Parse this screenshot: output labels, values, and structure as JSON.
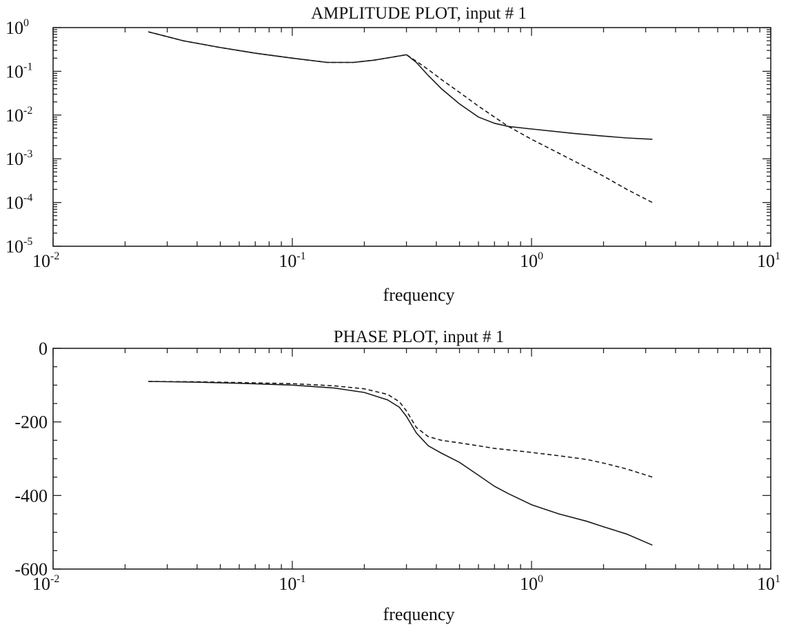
{
  "chart_data": [
    {
      "type": "line",
      "title": "AMPLITUDE PLOT, input # 1",
      "xlabel": "frequency",
      "ylabel": "",
      "xscale": "log",
      "yscale": "log",
      "xlim": [
        0.01,
        10
      ],
      "ylim": [
        1e-05,
        1
      ],
      "grid": false,
      "x_ticks": [
        {
          "base": "10",
          "exp": "-2"
        },
        {
          "base": "10",
          "exp": "-1"
        },
        {
          "base": "10",
          "exp": "0"
        },
        {
          "base": "10",
          "exp": "1"
        }
      ],
      "y_ticks": [
        {
          "base": "10",
          "exp": "0"
        },
        {
          "base": "10",
          "exp": "-1"
        },
        {
          "base": "10",
          "exp": "-2"
        },
        {
          "base": "10",
          "exp": "-3"
        },
        {
          "base": "10",
          "exp": "-4"
        },
        {
          "base": "10",
          "exp": "-5"
        }
      ],
      "series": [
        {
          "style": "solid",
          "x": [
            0.025,
            0.035,
            0.05,
            0.07,
            0.1,
            0.14,
            0.18,
            0.22,
            0.26,
            0.3,
            0.33,
            0.37,
            0.42,
            0.5,
            0.6,
            0.7,
            0.8,
            1.0,
            1.5,
            2.0,
            2.5,
            3.2
          ],
          "y": [
            0.8,
            0.5,
            0.35,
            0.26,
            0.2,
            0.16,
            0.16,
            0.18,
            0.21,
            0.24,
            0.16,
            0.08,
            0.04,
            0.018,
            0.009,
            0.0065,
            0.0055,
            0.0048,
            0.0038,
            0.0033,
            0.003,
            0.0028
          ]
        },
        {
          "style": "dashed",
          "x": [
            0.025,
            0.035,
            0.05,
            0.07,
            0.1,
            0.14,
            0.18,
            0.22,
            0.26,
            0.3,
            0.33,
            0.37,
            0.42,
            0.5,
            0.6,
            0.7,
            0.8,
            1.0,
            1.5,
            2.0,
            2.5,
            3.2
          ],
          "y": [
            0.8,
            0.5,
            0.35,
            0.26,
            0.2,
            0.16,
            0.16,
            0.18,
            0.21,
            0.24,
            0.17,
            0.11,
            0.065,
            0.033,
            0.016,
            0.009,
            0.0055,
            0.0028,
            0.0009,
            0.0004,
            0.0002,
            0.0001
          ]
        }
      ]
    },
    {
      "type": "line",
      "title": "PHASE PLOT, input # 1",
      "xlabel": "frequency",
      "ylabel": "",
      "xscale": "log",
      "yscale": "linear",
      "xlim": [
        0.01,
        10
      ],
      "ylim": [
        -600,
        0
      ],
      "grid": false,
      "x_ticks": [
        {
          "base": "10",
          "exp": "-2"
        },
        {
          "base": "10",
          "exp": "-1"
        },
        {
          "base": "10",
          "exp": "0"
        },
        {
          "base": "10",
          "exp": "1"
        }
      ],
      "y_ticks": [
        "0",
        "-200",
        "-400",
        "-600"
      ],
      "y_tick_values": [
        0,
        -200,
        -400,
        -600
      ],
      "series": [
        {
          "style": "solid",
          "x": [
            0.025,
            0.04,
            0.06,
            0.1,
            0.15,
            0.2,
            0.25,
            0.28,
            0.3,
            0.33,
            0.37,
            0.42,
            0.5,
            0.6,
            0.7,
            0.8,
            1.0,
            1.3,
            1.7,
            2.0,
            2.5,
            3.2
          ],
          "y": [
            -90,
            -92,
            -95,
            -100,
            -108,
            -120,
            -140,
            -160,
            -185,
            -230,
            -265,
            -285,
            -310,
            -345,
            -375,
            -395,
            -425,
            -450,
            -470,
            -485,
            -505,
            -535
          ]
        },
        {
          "style": "dashed",
          "x": [
            0.025,
            0.04,
            0.06,
            0.1,
            0.15,
            0.2,
            0.25,
            0.28,
            0.3,
            0.33,
            0.37,
            0.42,
            0.5,
            0.6,
            0.7,
            0.8,
            1.0,
            1.3,
            1.7,
            2.0,
            2.5,
            3.2
          ],
          "y": [
            -90,
            -91,
            -93,
            -96,
            -102,
            -110,
            -125,
            -145,
            -170,
            -215,
            -240,
            -250,
            -257,
            -265,
            -272,
            -276,
            -283,
            -292,
            -302,
            -312,
            -328,
            -350
          ]
        }
      ]
    }
  ]
}
